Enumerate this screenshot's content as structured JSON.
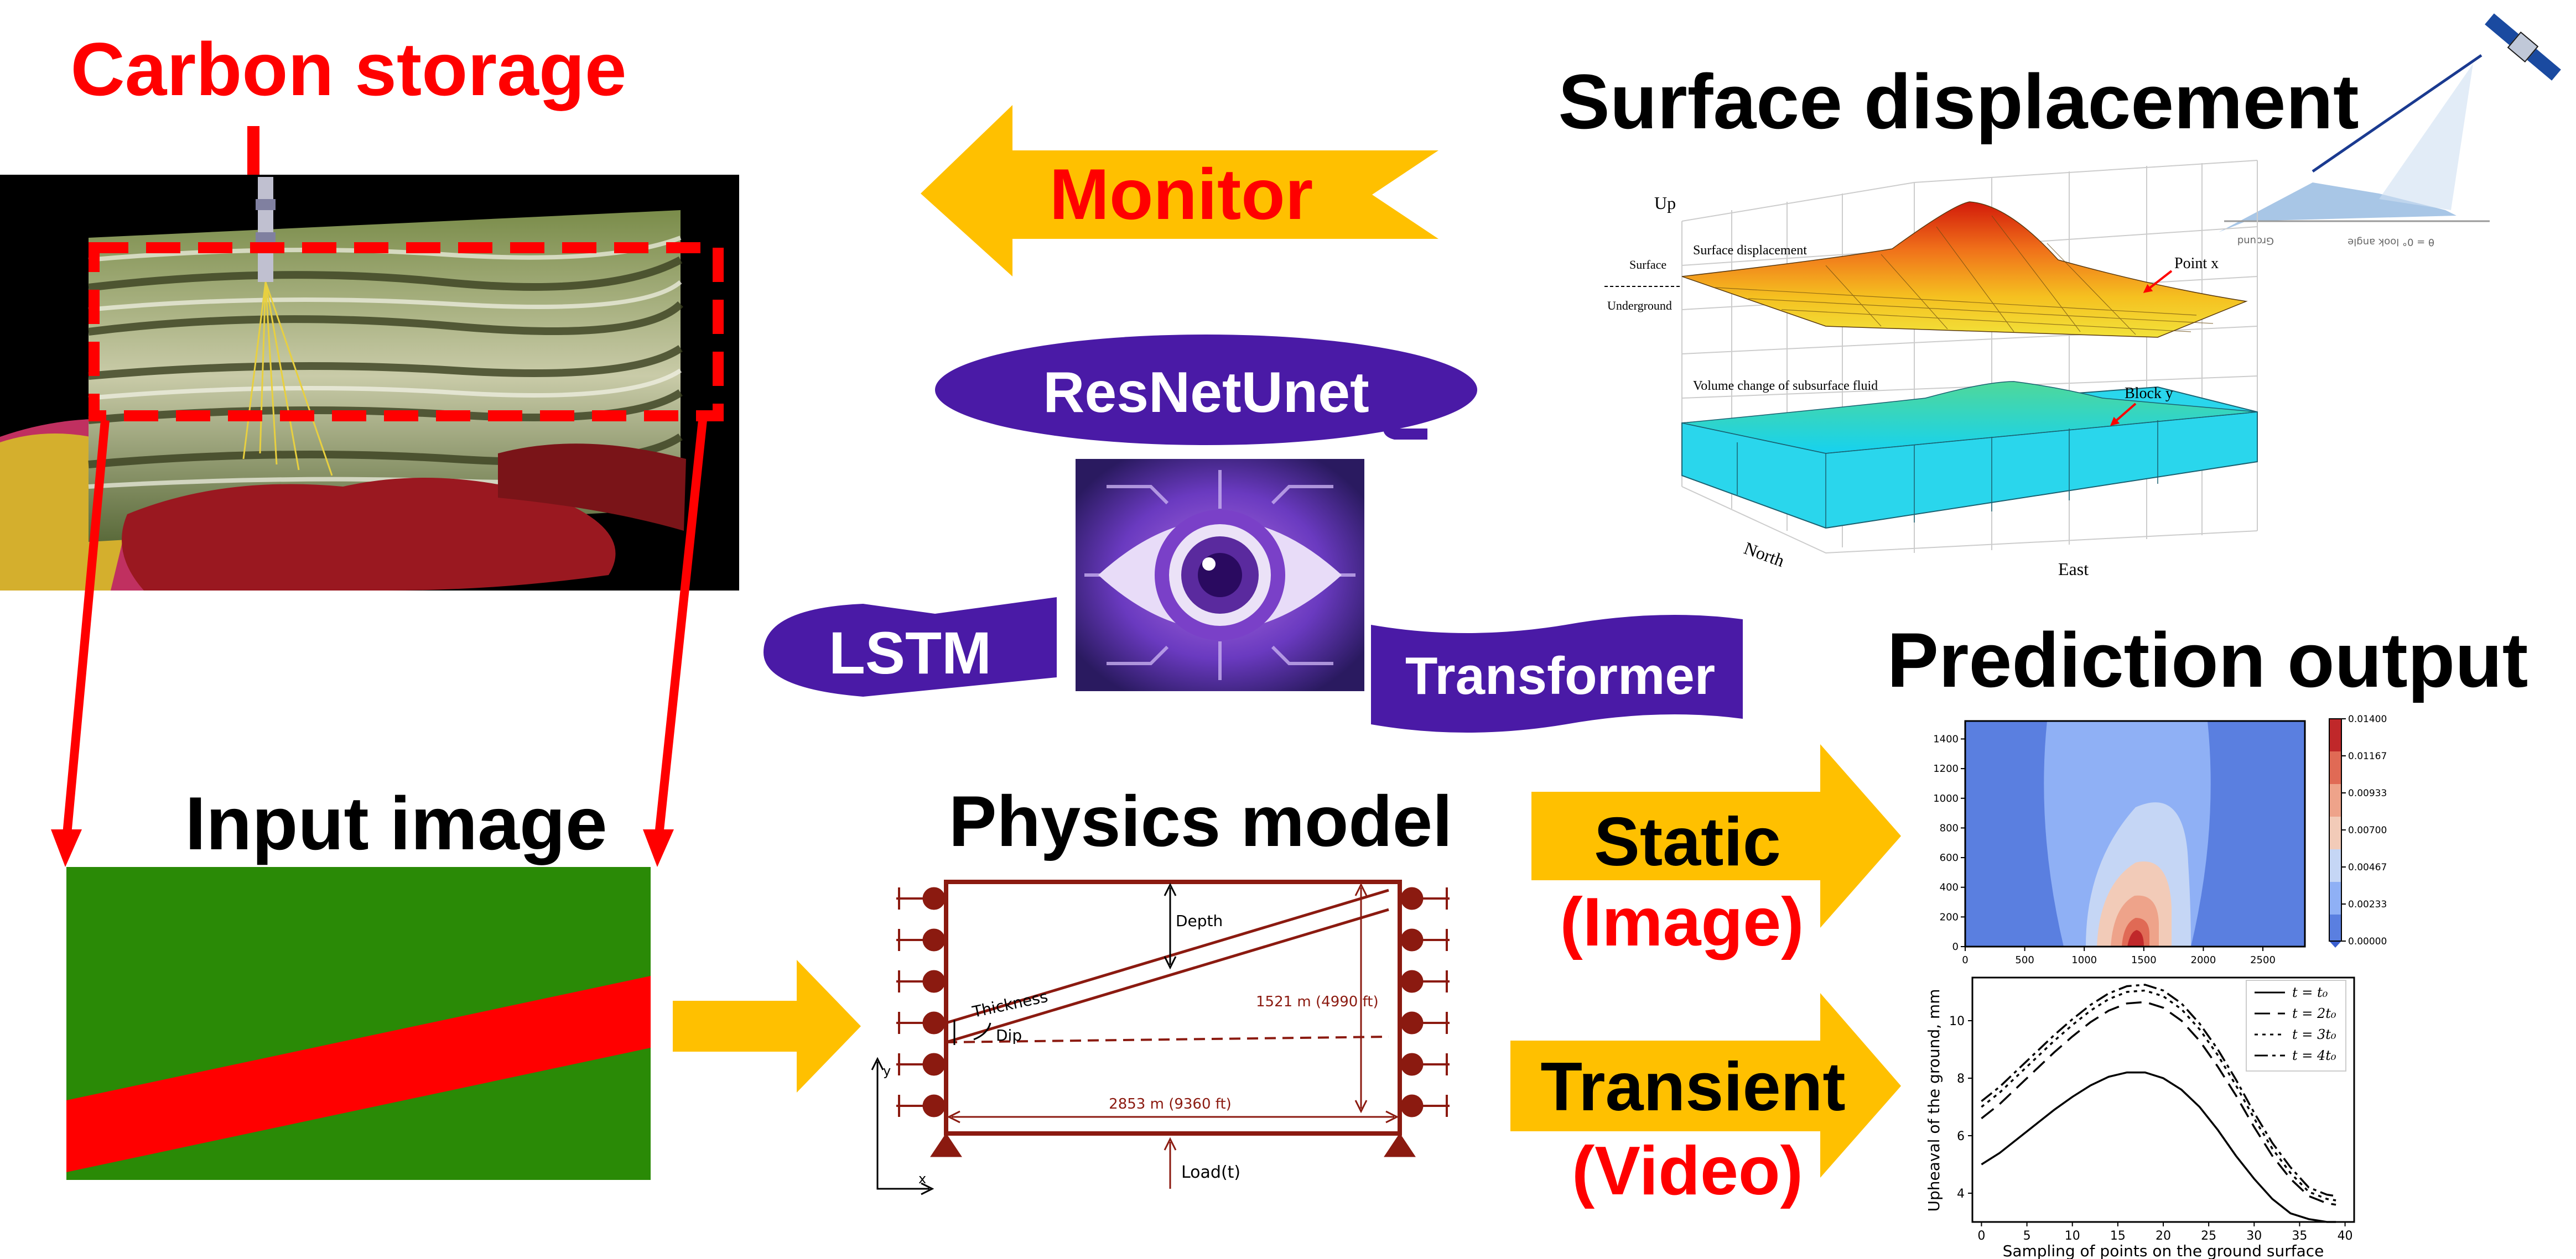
{
  "colors": {
    "red": "#ff0000",
    "darkred": "#8b1a10",
    "gold": "#ffc000",
    "purple": "#4a1aa6",
    "green": "#2a8a06",
    "black": "#000000"
  },
  "labels": {
    "carbon_storage": "Carbon storage",
    "surface_displacement": "Surface displacement",
    "monitor": "Monitor",
    "resnetunet": "ResNetUnet",
    "lstm": "LSTM",
    "transformer": "Transformer",
    "input_image": "Input image",
    "physics_model": "Physics model",
    "static": "Static",
    "image": "(Image)",
    "transient": "Transient",
    "video": "(Video)",
    "prediction_output": "Prediction output"
  },
  "surface_plot": {
    "up": "Up",
    "surface": "Surface",
    "underground": "Underground",
    "surface_disp": "Surface displacement",
    "volume_change": "Volume change of subsurface fluid",
    "point_x": "Point x",
    "block_y": "Block y",
    "north": "North",
    "east": "East"
  },
  "satellite": {
    "ground": "Ground",
    "los": "θ = 0° look angle"
  },
  "physics": {
    "depth": "Depth",
    "thickness": "Thickness",
    "dip": "Dip",
    "height": "1521 m (4990 ft)",
    "width": "2853 m (9360 ft)",
    "load": "Load(t)",
    "axis_y": "y",
    "axis_x": "x"
  },
  "chart_data": [
    {
      "type": "heatmap",
      "x_ticks": [
        "0",
        "500",
        "1000",
        "1500",
        "2000",
        "2500"
      ],
      "y_ticks": [
        "0",
        "200",
        "400",
        "600",
        "800",
        "1000",
        "1200",
        "1400"
      ],
      "xlim": [
        0,
        2853
      ],
      "ylim": [
        0,
        1521
      ],
      "colorbar_ticks": [
        "0.01400",
        "0.01167",
        "0.00933",
        "0.00700",
        "0.00467",
        "0.00233",
        "0.00000"
      ],
      "colorbar_levels": [
        0.0,
        0.00233,
        0.00467,
        0.007,
        0.00933,
        0.01167,
        0.014
      ],
      "colors": [
        "#5a7fe0",
        "#8fb0f5",
        "#c5d6f5",
        "#f2cbb8",
        "#eea38a",
        "#e06a55",
        "#c0282a"
      ]
    },
    {
      "type": "line",
      "xlabel": "Sampling of points on the ground surface",
      "ylabel": "Upheaval of the ground, mm",
      "x_ticks": [
        0,
        5,
        10,
        15,
        20,
        25,
        30,
        35,
        40
      ],
      "y_ticks": [
        4,
        6,
        8,
        10
      ],
      "xlim": [
        -1,
        41
      ],
      "ylim": [
        3,
        11.5
      ],
      "x": [
        0,
        2,
        4,
        6,
        8,
        10,
        12,
        14,
        16,
        18,
        20,
        22,
        24,
        26,
        28,
        30,
        32,
        34,
        36,
        38,
        39
      ],
      "series": [
        {
          "name": "t = t₀",
          "dash": "",
          "values": [
            5.0,
            5.4,
            5.9,
            6.4,
            6.9,
            7.35,
            7.75,
            8.05,
            8.2,
            8.2,
            8.0,
            7.6,
            7.0,
            6.2,
            5.3,
            4.5,
            3.8,
            3.3,
            3.1,
            3.0,
            3.0
          ]
        },
        {
          "name": "t = 2t₀",
          "dash": "28,14",
          "values": [
            6.6,
            7.1,
            7.7,
            8.3,
            8.9,
            9.45,
            9.95,
            10.35,
            10.6,
            10.65,
            10.45,
            10.0,
            9.3,
            8.4,
            7.4,
            6.3,
            5.3,
            4.5,
            3.9,
            3.65,
            3.6
          ]
        },
        {
          "name": "t = 3t₀",
          "dash": "6,8",
          "values": [
            7.0,
            7.5,
            8.1,
            8.7,
            9.3,
            9.85,
            10.35,
            10.75,
            11.0,
            11.05,
            10.85,
            10.4,
            9.7,
            8.8,
            7.75,
            6.6,
            5.55,
            4.7,
            4.05,
            3.8,
            3.75
          ]
        },
        {
          "name": "t = 4t₀",
          "dash": "24,8,6,8",
          "values": [
            7.2,
            7.7,
            8.3,
            8.9,
            9.5,
            10.05,
            10.55,
            10.95,
            11.2,
            11.25,
            11.05,
            10.6,
            9.9,
            9.0,
            7.95,
            6.8,
            5.75,
            4.9,
            4.2,
            3.95,
            3.9
          ]
        }
      ]
    }
  ]
}
